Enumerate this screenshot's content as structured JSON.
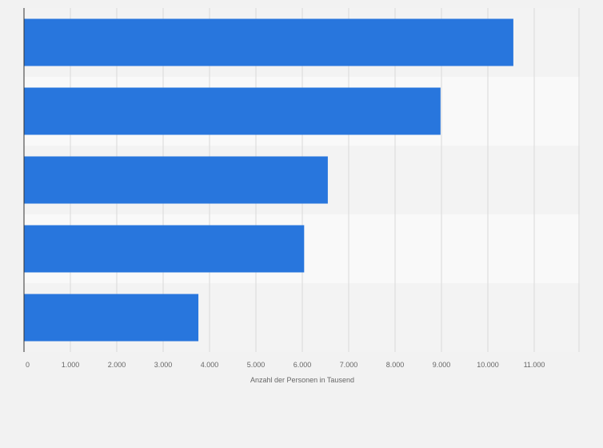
{
  "chart_data": {
    "type": "bar",
    "orientation": "horizontal",
    "title": "",
    "xlabel": "Anzahl der Personen in Tausend",
    "ylabel": "",
    "categories": [
      "",
      "",
      "",
      "",
      ""
    ],
    "values": [
      10550,
      8980,
      6550,
      6040,
      3760
    ],
    "xlim": [
      0,
      12000
    ],
    "xticks": [
      0,
      1000,
      2000,
      3000,
      4000,
      5000,
      6000,
      7000,
      8000,
      9000,
      10000,
      11000
    ],
    "xtick_labels": [
      "0",
      "1.000",
      "2.000",
      "3.000",
      "4.000",
      "5.000",
      "6.000",
      "7.000",
      "8.000",
      "9.000",
      "10.000",
      "11.000"
    ],
    "grid": true,
    "legend": "none",
    "colors": {
      "bar": "#2876dd",
      "band_odd": "#f3f3f3",
      "band_even": "#f9f9f9",
      "grid": "#d9d9d9",
      "axis": "#333333",
      "text": "#666666"
    }
  }
}
